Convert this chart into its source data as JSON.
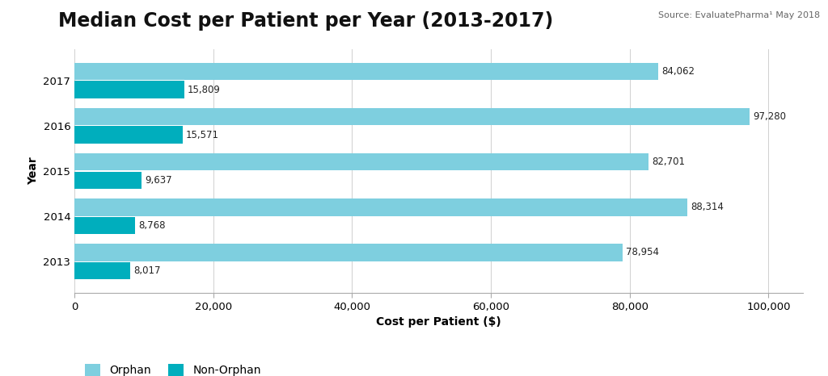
{
  "title": "Median Cost per Patient per Year (2013-2017)",
  "source_text": "Source: EvaluatePharma¹ May 2018",
  "xlabel": "Cost per Patient ($)",
  "ylabel": "Year",
  "years": [
    "2013",
    "2014",
    "2015",
    "2016",
    "2017"
  ],
  "orphan_values": [
    78954,
    88314,
    82701,
    97280,
    84062
  ],
  "non_orphan_values": [
    8017,
    8768,
    9637,
    15571,
    15809
  ],
  "orphan_color": "#7ECFDF",
  "non_orphan_color": "#00AEBD",
  "orphan_label": "Orphan",
  "non_orphan_label": "Non-Orphan",
  "xlim": [
    0,
    105000
  ],
  "background_color": "#ffffff",
  "title_fontsize": 17,
  "source_fontsize": 8,
  "label_fontsize": 10,
  "tick_fontsize": 9.5,
  "bar_height": 0.38,
  "bar_gap": 0.02,
  "value_fontsize": 8.5
}
